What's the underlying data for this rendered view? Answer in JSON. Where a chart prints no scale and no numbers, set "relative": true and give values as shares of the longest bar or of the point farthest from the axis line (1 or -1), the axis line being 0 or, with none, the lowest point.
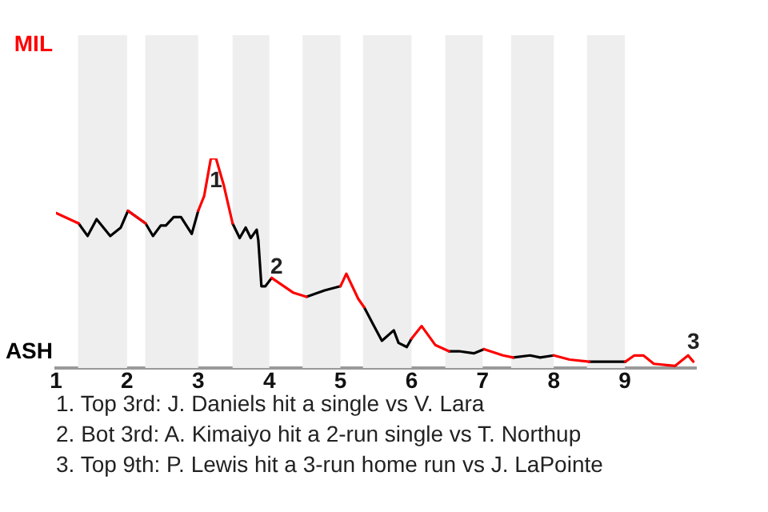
{
  "chart_data": {
    "type": "line",
    "marker": "none",
    "legend": false,
    "relative": true,
    "x": [
      1,
      1.318,
      1.444,
      1.571,
      1.763,
      1.911,
      2.012,
      2.26,
      2.364,
      2.473,
      2.545,
      2.655,
      2.758,
      2.909,
      3,
      3.083,
      3.178,
      3.25,
      3.361,
      3.483,
      3.583,
      3.667,
      3.739,
      3.822,
      3.845,
      3.889,
      3.945,
      4.033,
      4.333,
      4.523,
      4.777,
      5,
      5.083,
      5.25,
      5.333,
      5.472,
      5.583,
      5.75,
      5.817,
      5.933,
      6,
      6.142,
      6.333,
      6.525,
      6.667,
      6.875,
      7.019,
      7.286,
      7.429,
      7.666,
      7.809,
      8,
      8.223,
      8.5,
      9.007,
      9.007,
      9.133,
      9.26,
      9.407,
      9.704,
      9.889,
      9.963
    ],
    "series": [
      {
        "color": "#ff0000",
        "values": [
          0.74,
          0.69,
          null,
          null,
          null,
          null,
          0.75,
          0.69,
          null,
          null,
          null,
          null,
          null,
          null,
          0.75,
          0.82,
          1,
          1,
          0.87,
          0.69,
          null,
          null,
          null,
          null,
          null,
          null,
          null,
          0.43,
          0.36,
          0.34,
          null,
          0.39,
          0.45,
          0.33,
          0.29,
          null,
          null,
          null,
          null,
          null,
          0.14,
          0.2,
          0.11,
          0.08,
          null,
          null,
          0.09,
          0.06,
          0.05,
          null,
          null,
          0.06,
          0.04,
          0.03,
          null,
          0.03,
          0.06,
          0.06,
          0.02,
          0.01,
          0.06,
          0.03
        ]
      },
      {
        "color": "#000000",
        "values": [
          null,
          0.69,
          0.63,
          0.71,
          0.63,
          0.67,
          0.75,
          0.69,
          0.63,
          0.68,
          0.68,
          0.72,
          0.72,
          0.64,
          0.75,
          null,
          null,
          null,
          null,
          0.69,
          0.62,
          0.67,
          0.62,
          0.66,
          0.61,
          0.39,
          0.39,
          0.43,
          null,
          0.34,
          0.37,
          0.39,
          null,
          null,
          0.29,
          0.2,
          0.13,
          0.18,
          0.12,
          0.1,
          0.14,
          null,
          null,
          0.08,
          0.08,
          0.07,
          0.09,
          null,
          0.05,
          0.06,
          0.05,
          0.06,
          null,
          0.03,
          0.03,
          null,
          null,
          null,
          null,
          null,
          null,
          null
        ]
      }
    ],
    "xlim": [
      1,
      10
    ],
    "xticks": [
      1,
      2,
      3,
      4,
      5,
      6,
      7,
      8,
      9
    ],
    "bands": [
      {
        "axis": "x",
        "from": 1.311,
        "to": 2,
        "color": "#eeeeee"
      },
      {
        "axis": "x",
        "from": 2.255,
        "to": 3,
        "color": "#eeeeee"
      },
      {
        "axis": "x",
        "from": 3.483,
        "to": 4,
        "color": "#eeeeee"
      },
      {
        "axis": "x",
        "from": 4.467,
        "to": 5,
        "color": "#eeeeee"
      },
      {
        "axis": "x",
        "from": 5.317,
        "to": 6,
        "color": "#eeeeee"
      },
      {
        "axis": "x",
        "from": 6.475,
        "to": 7,
        "color": "#eeeeee"
      },
      {
        "axis": "x",
        "from": 7.4,
        "to": 8,
        "color": "#eeeeee"
      },
      {
        "axis": "x",
        "from": 8.467,
        "to": 9,
        "color": "#eeeeee"
      }
    ],
    "annotations": [
      "MIL",
      "ASH",
      {
        "text": "1",
        "x": 3.25,
        "y": 1
      },
      {
        "text": "2",
        "x": 3.945,
        "y": 0.39
      },
      {
        "text": "3",
        "x": 9.963,
        "y": 0.03
      },
      "1. Top 3rd: J. Daniels hit a single vs V. Lara",
      "2. Bot 3rd: A. Kimaiyo hit a 2-run single vs T. Northup",
      "3. Top 9th: P. Lewis hit a 3-run home run vs J. LaPointe"
    ]
  }
}
